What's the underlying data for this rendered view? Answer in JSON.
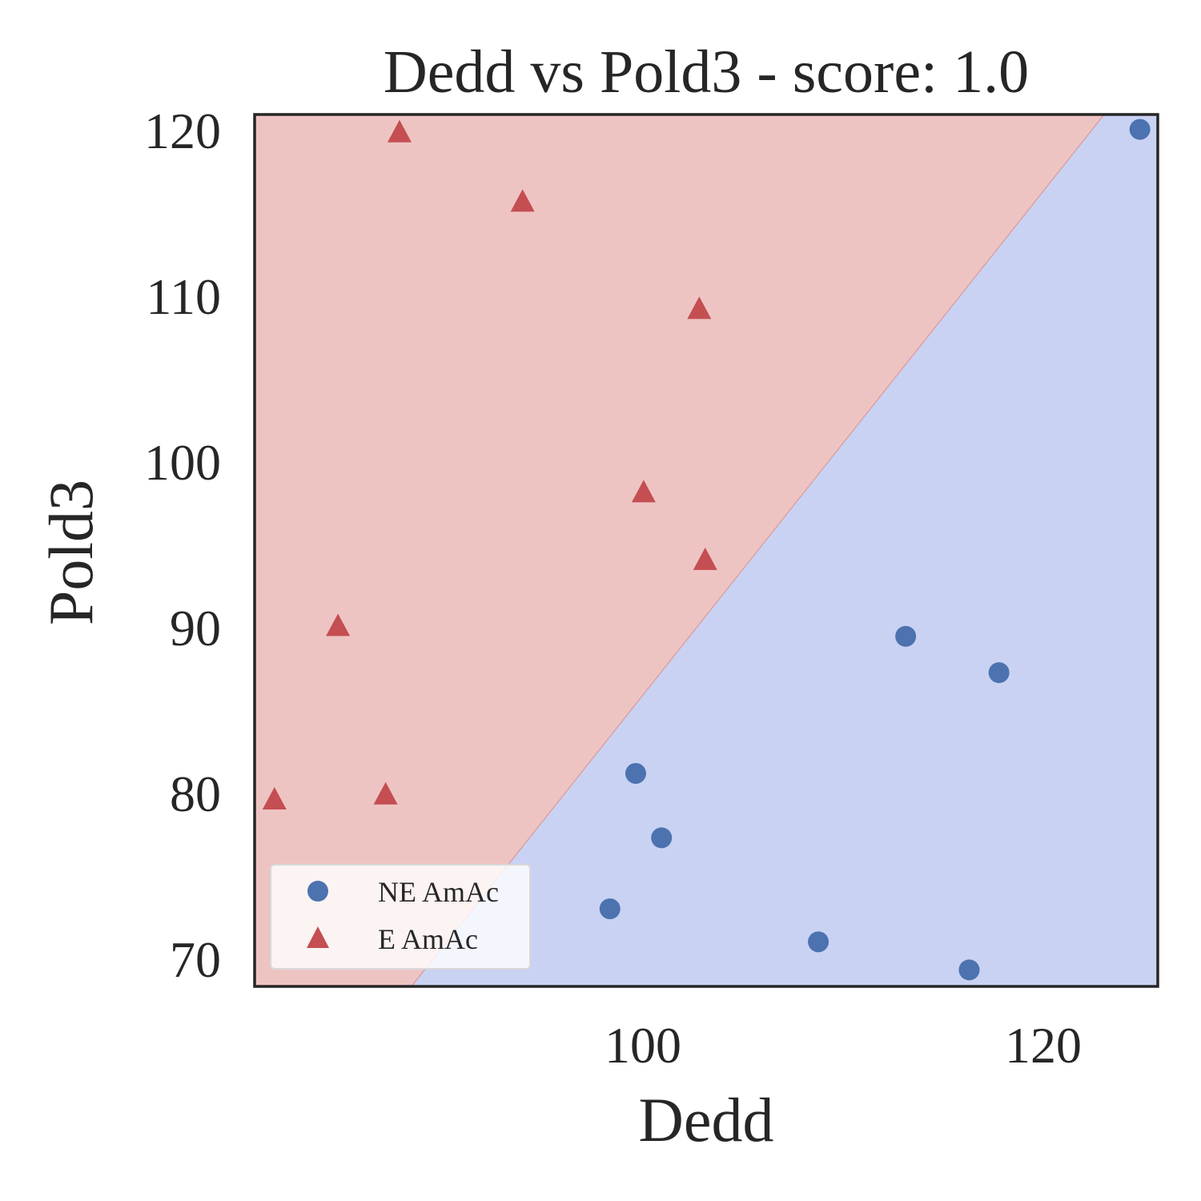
{
  "chart_data": {
    "type": "scatter",
    "title": "Dedd vs Pold3 - score: 1.0",
    "xlabel": "Dedd",
    "ylabel": "Pold3",
    "xlim": [
      80.4,
      125.9
    ],
    "ylim": [
      68.1,
      120.9
    ],
    "xticks": [
      "100",
      "120"
    ],
    "yticks": [
      "120",
      "110",
      "100",
      "90",
      "80",
      "70"
    ],
    "decision_boundary": {
      "from": {
        "x": 88.3,
        "y": 68.1
      },
      "to": {
        "x": 123.2,
        "y": 120.9
      },
      "upper_left_class": "E AmAc",
      "lower_right_class": "NE AmAc"
    },
    "legend": {
      "position": "lower-left"
    },
    "series": [
      {
        "name": "NE AmAc",
        "marker": "circle",
        "color": "#4c72b0",
        "region_color": "#c9d2f2",
        "points": [
          {
            "x": 125.0,
            "y": 120.0
          },
          {
            "x": 113.2,
            "y": 89.3
          },
          {
            "x": 117.9,
            "y": 87.1
          },
          {
            "x": 99.6,
            "y": 81.0
          },
          {
            "x": 100.9,
            "y": 77.1
          },
          {
            "x": 98.3,
            "y": 72.8
          },
          {
            "x": 108.8,
            "y": 70.8
          },
          {
            "x": 116.4,
            "y": 69.1
          }
        ]
      },
      {
        "name": "E AmAc",
        "marker": "triangle",
        "color": "#c44e52",
        "region_color": "#eec4c3",
        "points": [
          {
            "x": 87.7,
            "y": 119.8
          },
          {
            "x": 93.9,
            "y": 115.6
          },
          {
            "x": 102.8,
            "y": 109.1
          },
          {
            "x": 100.0,
            "y": 98.0
          },
          {
            "x": 103.1,
            "y": 93.9
          },
          {
            "x": 84.6,
            "y": 89.9
          },
          {
            "x": 81.4,
            "y": 79.4
          },
          {
            "x": 87.0,
            "y": 79.7
          }
        ]
      }
    ]
  }
}
